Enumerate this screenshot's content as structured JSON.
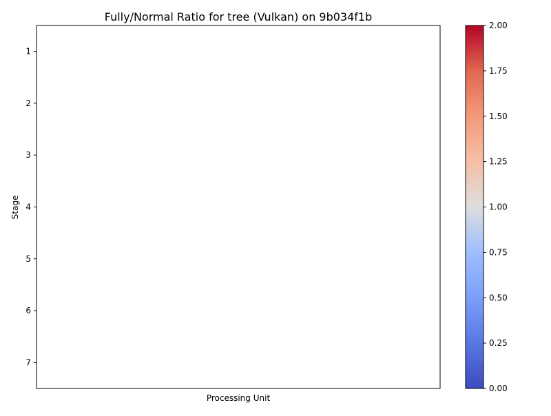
{
  "chart_data": {
    "type": "heatmap",
    "title": "Fully/Normal Ratio for tree (Vulkan) on 9b034f1b",
    "xlabel": "Processing Unit",
    "ylabel": "Stage",
    "y_categories": [
      "1",
      "2",
      "3",
      "4",
      "5",
      "6",
      "7"
    ],
    "x_categories": [],
    "values": [],
    "x_ticks_shown": false,
    "grid": false,
    "colorbar": {
      "colormap": "coolwarm",
      "vmin": 0.0,
      "vmax": 2.0,
      "ticks": [
        "0.00",
        "0.25",
        "0.50",
        "0.75",
        "1.00",
        "1.25",
        "1.50",
        "1.75",
        "2.00"
      ],
      "tick_values": [
        0.0,
        0.25,
        0.5,
        0.75,
        1.0,
        1.25,
        1.5,
        1.75,
        2.0
      ],
      "placement": "right",
      "stops": [
        {
          "offset": 0.0,
          "color": "#3b4cc0"
        },
        {
          "offset": 0.125,
          "color": "#5977e3"
        },
        {
          "offset": 0.25,
          "color": "#7b9ff9"
        },
        {
          "offset": 0.375,
          "color": "#9ebeff"
        },
        {
          "offset": 0.5,
          "color": "#dddddd"
        },
        {
          "offset": 0.625,
          "color": "#f6bfa6"
        },
        {
          "offset": 0.75,
          "color": "#f49a7b"
        },
        {
          "offset": 0.875,
          "color": "#e16751"
        },
        {
          "offset": 1.0,
          "color": "#b40426"
        }
      ]
    }
  }
}
